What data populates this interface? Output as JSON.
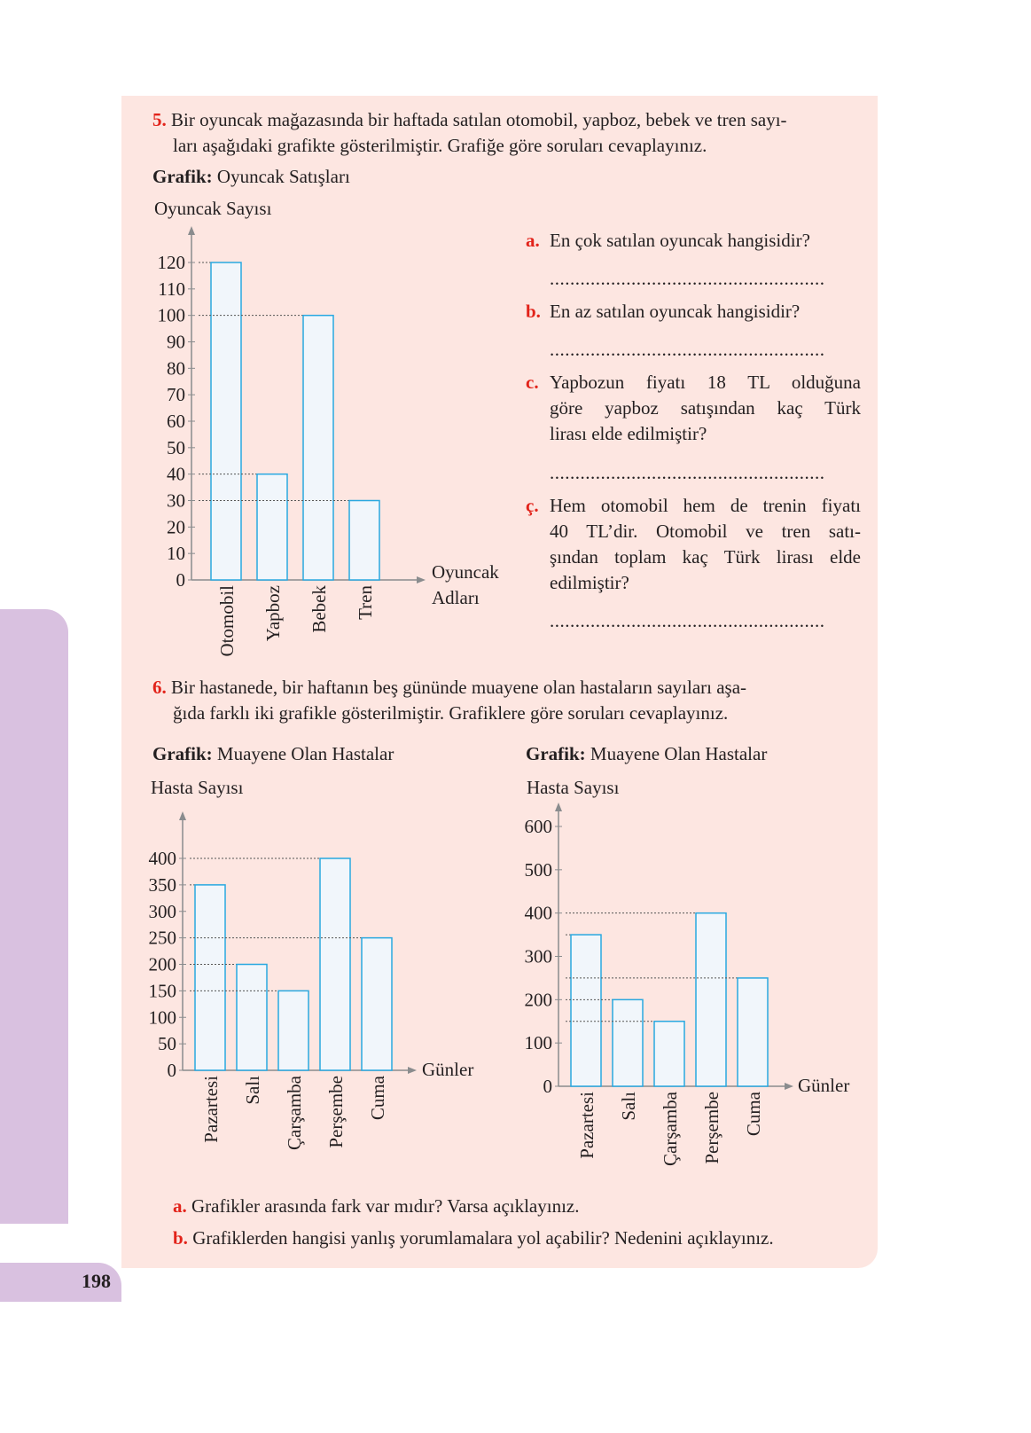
{
  "page_number": "198",
  "q5": {
    "num": "5.",
    "text_line1": "Bir oyuncak mağazasında bir haftada satılan otomobil, yapboz, bebek ve tren sayı-",
    "text_line2": "ları aşağıdaki grafikte gösterilmiştir. Grafiğe göre soruları cevaplayınız.",
    "graph_label": "Grafik:",
    "graph_title": "Oyuncak Satışları",
    "subs": [
      {
        "letter": "a.",
        "lines": [
          "En çok satılan oyuncak hangisidir?"
        ]
      },
      {
        "letter": "b.",
        "lines": [
          "En az satılan oyuncak hangisidir?"
        ]
      },
      {
        "letter": "c.",
        "lines": [
          "Yapbozun fiyatı 18 TL olduğuna",
          "göre yapboz satışından kaç Türk",
          "lirası elde edilmiştir?"
        ]
      },
      {
        "letter": "ç.",
        "lines": [
          "Hem otomobil hem de trenin fiyatı",
          "40 TL’dir. Otomobil ve tren satı-",
          "şından toplam kaç Türk lirası elde",
          "edilmiştir?"
        ]
      }
    ],
    "answer_line": "......................................................"
  },
  "q6": {
    "num": "6.",
    "text_line1": "Bir hastanede, bir haftanın beş gününde muayene olan hastaların sayıları aşa-",
    "text_line2": "ğıda farklı iki grafikle gösterilmiştir. Grafiklere göre soruları cevaplayınız.",
    "graph_label": "Grafik:",
    "graph_title": "Muayene Olan Hastalar",
    "subs": [
      {
        "letter": "a.",
        "text": "Grafikler arasında fark var mıdır? Varsa açıklayınız."
      },
      {
        "letter": "b.",
        "text": "Grafiklerden hangisi yanlış yorumlamalara yol açabilir? Nedenini açıklayınız."
      }
    ]
  },
  "colors": {
    "bar_stroke": "#29a8e0",
    "bar_fill": "#f1f6fb",
    "axis": "#8a8c8e",
    "panel": "#fde6e1",
    "tab": "#d9c1e0",
    "accent": "#e2231a"
  },
  "chart_data": [
    {
      "type": "bar",
      "title": "Oyuncak Satışları",
      "ylabel": "Oyuncak Sayısı",
      "xlabel": "Oyuncak Adları",
      "categories": [
        "Otomobil",
        "Yapboz",
        "Bebek",
        "Tren"
      ],
      "values": [
        120,
        40,
        100,
        30
      ],
      "yticks": [
        0,
        10,
        20,
        30,
        40,
        50,
        60,
        70,
        80,
        90,
        100,
        110,
        120
      ],
      "ylim": [
        0,
        120
      ],
      "grid": false
    },
    {
      "type": "bar",
      "title": "Muayene Olan Hastalar",
      "ylabel": "Hasta Sayısı",
      "xlabel": "Günler",
      "categories": [
        "Pazartesi",
        "Salı",
        "Çarşamba",
        "Perşembe",
        "Cuma"
      ],
      "values": [
        350,
        200,
        150,
        400,
        250
      ],
      "yticks": [
        0,
        50,
        100,
        150,
        200,
        250,
        300,
        350,
        400
      ],
      "ylim": [
        0,
        400
      ],
      "grid": false
    },
    {
      "type": "bar",
      "title": "Muayene Olan Hastalar",
      "ylabel": "Hasta Sayısı",
      "xlabel": "Günler",
      "categories": [
        "Pazartesi",
        "Salı",
        "Çarşamba",
        "Perşembe",
        "Cuma"
      ],
      "values": [
        350,
        200,
        150,
        400,
        250
      ],
      "yticks": [
        0,
        100,
        200,
        300,
        400,
        500,
        600
      ],
      "ylim": [
        0,
        600
      ],
      "grid": false
    }
  ]
}
